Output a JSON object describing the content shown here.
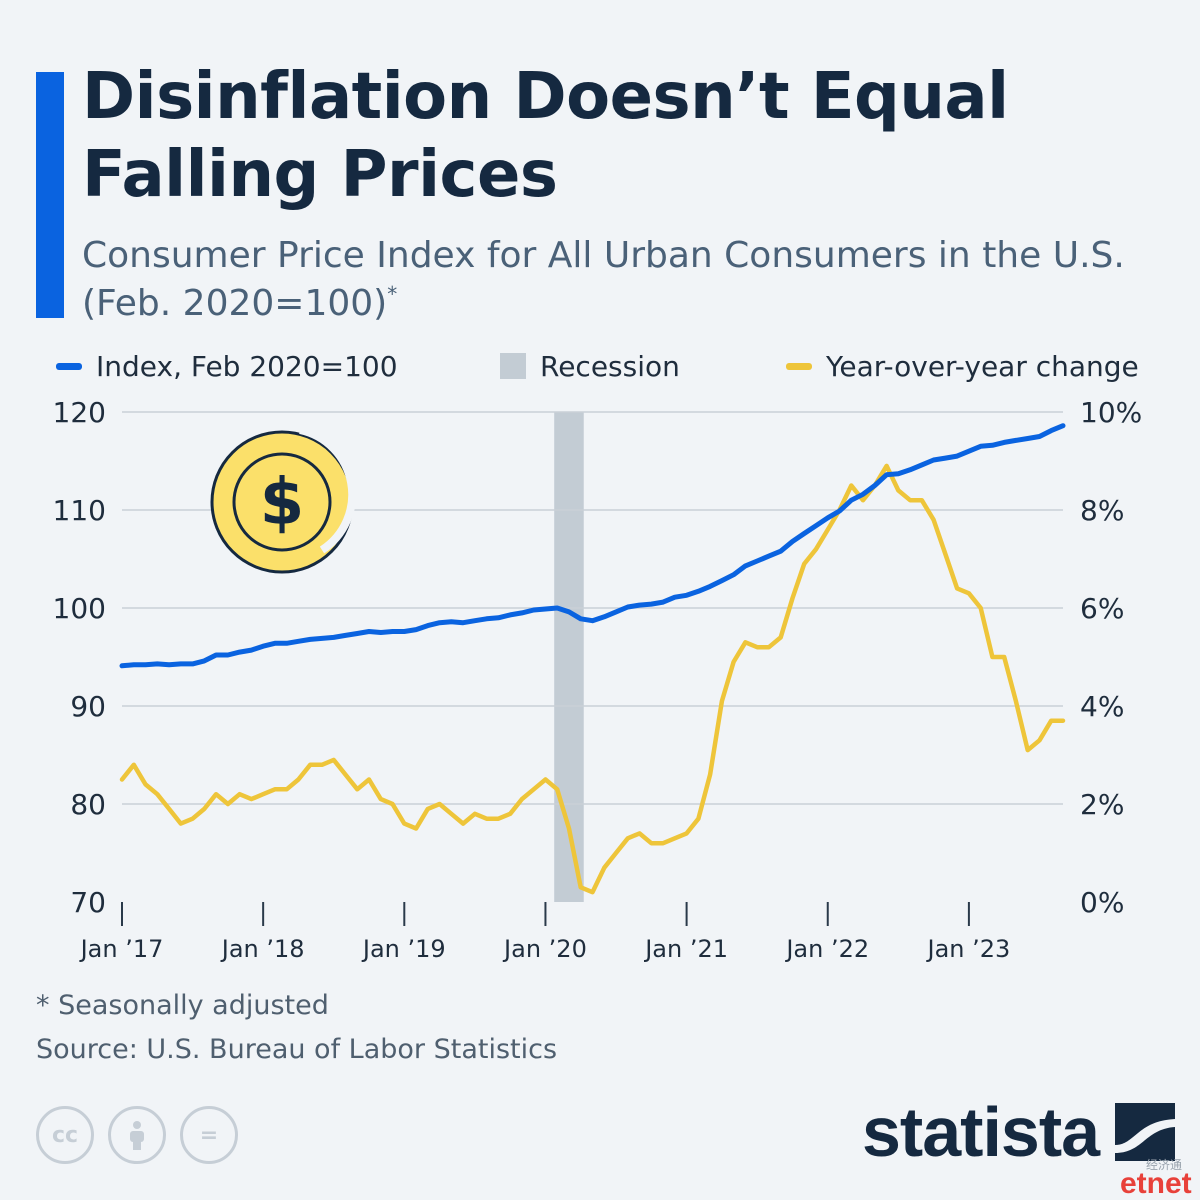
{
  "header": {
    "title": "Disinflation Doesn’t Equal Falling Prices",
    "subtitle": "Consumer Price Index for All Urban Consumers in the U.S. (Feb. 2020=100)",
    "subtitle_mark": "*"
  },
  "legend": {
    "index_label": "Index, Feb 2020=100",
    "recession_label": "Recession",
    "yoy_label": "Year-over-year change"
  },
  "colors": {
    "index": "#0a63e0",
    "yoy": "#eec53a",
    "recession": "#c3ccd4",
    "grid": "#c9d0d7",
    "text": "#1f2d3d",
    "accent": "#0a63e0"
  },
  "icon": "dollar-coin-icon",
  "icon_symbol": "$",
  "chart_data": {
    "type": "line",
    "title": "Disinflation Doesn’t Equal Falling Prices",
    "subtitle": "Consumer Price Index for All Urban Consumers in the U.S. (Feb. 2020=100)",
    "x_start": "Jan 2017",
    "x_ticks": [
      "Jan ’17",
      "Jan ’18",
      "Jan ’19",
      "Jan ’20",
      "Jan ’21",
      "Jan ’22",
      "Jan ’23"
    ],
    "y_left": {
      "range": [
        70,
        120
      ],
      "ticks": [
        "70",
        "80",
        "90",
        "100",
        "110",
        "120"
      ]
    },
    "y_right": {
      "range": [
        0,
        10
      ],
      "unit": "%",
      "ticks": [
        "0%",
        "2%",
        "4%",
        "6%",
        "8%",
        "10%"
      ]
    },
    "grid": true,
    "legend_position": "top",
    "recession": {
      "start": "Feb 2020",
      "end": "Apr 2020"
    },
    "series": [
      {
        "name": "Index, Feb 2020=100",
        "axis": "left",
        "values": [
          94.1,
          94.2,
          94.2,
          94.3,
          94.2,
          94.3,
          94.3,
          94.6,
          95.2,
          95.2,
          95.5,
          95.7,
          96.1,
          96.4,
          96.4,
          96.6,
          96.8,
          96.9,
          97.0,
          97.2,
          97.4,
          97.6,
          97.5,
          97.6,
          97.6,
          97.8,
          98.2,
          98.5,
          98.6,
          98.5,
          98.7,
          98.9,
          99.0,
          99.3,
          99.5,
          99.8,
          99.9,
          100.0,
          99.6,
          98.9,
          98.7,
          99.1,
          99.6,
          100.1,
          100.3,
          100.4,
          100.6,
          101.1,
          101.3,
          101.7,
          102.2,
          102.8,
          103.4,
          104.3,
          104.8,
          105.3,
          105.8,
          106.8,
          107.6,
          108.4,
          109.2,
          109.9,
          111.0,
          111.6,
          112.5,
          113.6,
          113.7,
          114.1,
          114.6,
          115.1,
          115.3,
          115.5,
          116.0,
          116.5,
          116.6,
          116.9,
          117.1,
          117.3,
          117.5,
          118.1,
          118.6
        ]
      },
      {
        "name": "Year-over-year change",
        "axis": "right",
        "values": [
          2.5,
          2.8,
          2.4,
          2.2,
          1.9,
          1.6,
          1.7,
          1.9,
          2.2,
          2.0,
          2.2,
          2.1,
          2.2,
          2.3,
          2.3,
          2.5,
          2.8,
          2.8,
          2.9,
          2.6,
          2.3,
          2.5,
          2.1,
          2.0,
          1.6,
          1.5,
          1.9,
          2.0,
          1.8,
          1.6,
          1.8,
          1.7,
          1.7,
          1.8,
          2.1,
          2.3,
          2.5,
          2.3,
          1.5,
          0.3,
          0.2,
          0.7,
          1.0,
          1.3,
          1.4,
          1.2,
          1.2,
          1.3,
          1.4,
          1.7,
          2.6,
          4.1,
          4.9,
          5.3,
          5.2,
          5.2,
          5.4,
          6.2,
          6.9,
          7.2,
          7.6,
          8.0,
          8.5,
          8.2,
          8.5,
          8.9,
          8.4,
          8.2,
          8.2,
          7.8,
          7.1,
          6.4,
          6.3,
          6.0,
          5.0,
          5.0,
          4.1,
          3.1,
          3.3,
          3.7,
          3.7
        ]
      }
    ]
  },
  "footer": {
    "footnote": "* Seasonally adjusted",
    "source": "Source: U.S. Bureau of Labor Statistics",
    "license_icons": [
      "cc-icon",
      "attribution-icon",
      "no-derivatives-icon"
    ],
    "license_glyphs": [
      "cc",
      "="
    ],
    "brand": "statista",
    "watermark_cn": "经济通",
    "watermark_net": "etnet"
  }
}
